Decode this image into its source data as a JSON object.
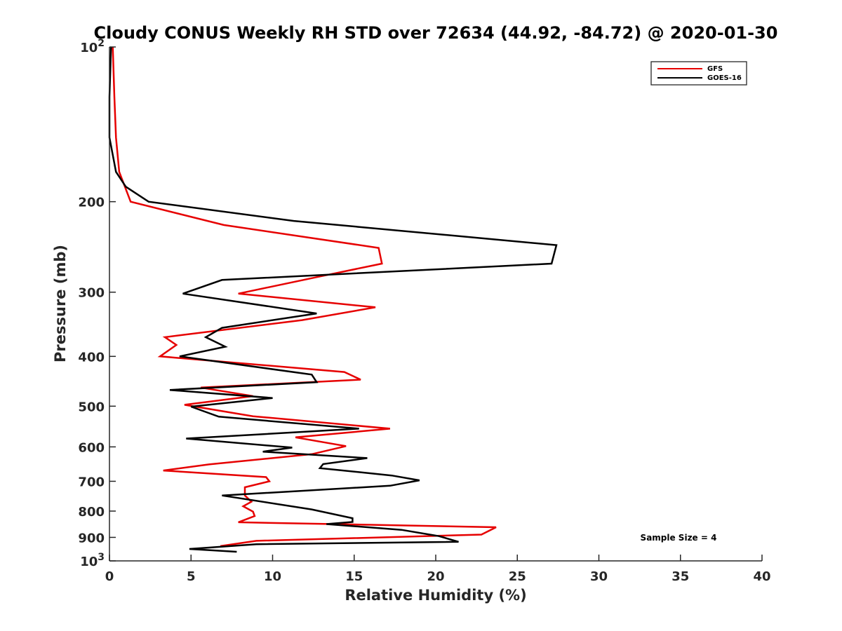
{
  "chart_data": {
    "type": "line",
    "title": "Cloudy CONUS Weekly RH STD over 72634 (44.92, -84.72) @ 2020-01-30",
    "xlabel": "Relative Humidity (%)",
    "ylabel": "Pressure (mb)",
    "xlim": [
      0,
      40
    ],
    "ylim": [
      100,
      1000
    ],
    "y_scale": "log",
    "y_reversed": true,
    "grid": false,
    "legend_position": "top-right",
    "x_ticks": [
      "0",
      "5",
      "10",
      "15",
      "20",
      "25",
      "30",
      "35",
      "40"
    ],
    "y_ticks": [
      {
        "value": 100,
        "base": "10",
        "exp": "2"
      },
      {
        "value": 200,
        "base": "200",
        "exp": ""
      },
      {
        "value": 300,
        "base": "300",
        "exp": ""
      },
      {
        "value": 400,
        "base": "400",
        "exp": ""
      },
      {
        "value": 500,
        "base": "500",
        "exp": ""
      },
      {
        "value": 600,
        "base": "600",
        "exp": ""
      },
      {
        "value": 700,
        "base": "700",
        "exp": ""
      },
      {
        "value": 800,
        "base": "800",
        "exp": ""
      },
      {
        "value": 900,
        "base": "900",
        "exp": ""
      },
      {
        "value": 1000,
        "base": "10",
        "exp": "3"
      }
    ],
    "annotation": "Sample Size = 4",
    "series": [
      {
        "name": "GFS",
        "color": "#e60000",
        "points": [
          [
            0.2,
            100
          ],
          [
            0.3,
            125
          ],
          [
            0.4,
            150
          ],
          [
            0.6,
            175
          ],
          [
            1.3,
            200
          ],
          [
            7.0,
            222
          ],
          [
            16.5,
            246
          ],
          [
            16.7,
            264
          ],
          [
            12.8,
            280
          ],
          [
            7.9,
            302
          ],
          [
            16.3,
            321
          ],
          [
            11.8,
            340
          ],
          [
            3.4,
            367
          ],
          [
            4.1,
            380
          ],
          [
            3.1,
            400
          ],
          [
            14.4,
            429
          ],
          [
            15.4,
            444
          ],
          [
            5.6,
            460
          ],
          [
            8.8,
            478
          ],
          [
            4.6,
            497
          ],
          [
            8.8,
            523
          ],
          [
            17.2,
            553
          ],
          [
            11.4,
            575
          ],
          [
            14.5,
            598
          ],
          [
            12.4,
            620
          ],
          [
            6.1,
            649
          ],
          [
            3.3,
            667
          ],
          [
            9.6,
            687
          ],
          [
            9.8,
            700
          ],
          [
            8.3,
            719
          ],
          [
            8.3,
            746
          ],
          [
            8.7,
            767
          ],
          [
            8.2,
            783
          ],
          [
            8.8,
            802
          ],
          [
            8.9,
            818
          ],
          [
            7.9,
            841
          ],
          [
            23.7,
            860
          ],
          [
            22.8,
            889
          ],
          [
            9.0,
            914
          ],
          [
            6.8,
            936
          ]
        ]
      },
      {
        "name": "GOES-16",
        "color": "#000000",
        "points": [
          [
            0.1,
            100
          ],
          [
            0.0,
            125
          ],
          [
            0.0,
            150
          ],
          [
            0.4,
            175
          ],
          [
            1.0,
            187
          ],
          [
            2.4,
            200
          ],
          [
            11.3,
            218
          ],
          [
            27.4,
            243
          ],
          [
            27.1,
            264
          ],
          [
            6.9,
            284
          ],
          [
            4.5,
            302
          ],
          [
            12.7,
            330
          ],
          [
            6.9,
            352
          ],
          [
            5.9,
            367
          ],
          [
            7.1,
            383
          ],
          [
            4.3,
            400
          ],
          [
            12.4,
            434
          ],
          [
            12.7,
            449
          ],
          [
            3.7,
            465
          ],
          [
            10.0,
            482
          ],
          [
            5.0,
            501
          ],
          [
            6.7,
            524
          ],
          [
            15.3,
            553
          ],
          [
            4.7,
            578
          ],
          [
            11.2,
            602
          ],
          [
            9.4,
            613
          ],
          [
            15.8,
            631
          ],
          [
            13.1,
            648
          ],
          [
            12.9,
            660
          ],
          [
            17.3,
            682
          ],
          [
            19.0,
            697
          ],
          [
            17.2,
            714
          ],
          [
            6.9,
            746
          ],
          [
            12.4,
            794
          ],
          [
            14.9,
            826
          ],
          [
            14.9,
            840
          ],
          [
            13.3,
            848
          ],
          [
            17.9,
            870
          ],
          [
            20.2,
            895
          ],
          [
            21.4,
            918
          ],
          [
            9.0,
            928
          ],
          [
            4.9,
            948
          ],
          [
            7.8,
            960
          ]
        ]
      }
    ]
  }
}
